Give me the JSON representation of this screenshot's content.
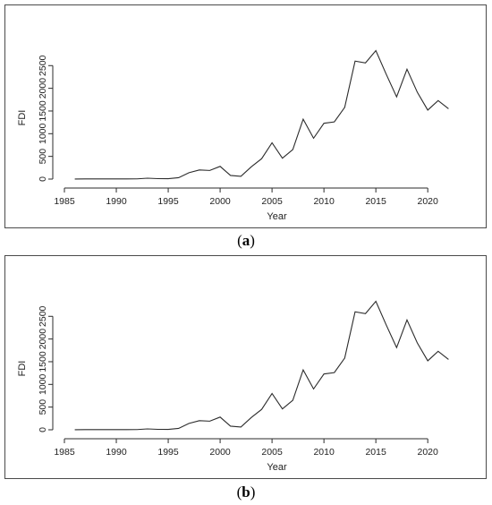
{
  "captions": [
    {
      "open": "(",
      "letter": "a",
      "close": ")"
    },
    {
      "open": "(",
      "letter": "b",
      "close": ")"
    }
  ],
  "chart_data": [
    {
      "type": "line",
      "xlabel": "Year",
      "ylabel": "FDI",
      "xlim": [
        1985,
        2023
      ],
      "ylim": [
        0,
        2900
      ],
      "x_ticks": [
        1985,
        1990,
        1995,
        2000,
        2005,
        2010,
        2015,
        2020
      ],
      "y_ticks": [
        0,
        500,
        1000,
        1500,
        2000,
        2500
      ],
      "color": "#2b2b2b",
      "series": [
        {
          "x": [
            1986,
            1987,
            1988,
            1989,
            1990,
            1991,
            1992,
            1993,
            1994,
            1995,
            1996,
            1997,
            1998,
            1999,
            2000,
            2001,
            2002,
            2003,
            2004,
            2005,
            2006,
            2007,
            2008,
            2009,
            2010,
            2011,
            2012,
            2013,
            2014,
            2015,
            2016,
            2017,
            2018,
            2019,
            2020,
            2021,
            2022
          ],
          "values": [
            2,
            3,
            3,
            3,
            4,
            4,
            5,
            20,
            10,
            8,
            30,
            140,
            200,
            190,
            280,
            80,
            60,
            270,
            450,
            800,
            460,
            650,
            1320,
            900,
            1230,
            1260,
            1580,
            2600,
            2560,
            2830,
            2310,
            1810,
            2420,
            1910,
            1520,
            1730,
            1550
          ]
        }
      ]
    },
    {
      "type": "line",
      "xlabel": "Year",
      "ylabel": "FDI",
      "xlim": [
        1985,
        2023
      ],
      "ylim": [
        0,
        2900
      ],
      "x_ticks": [
        1985,
        1990,
        1995,
        2000,
        2005,
        2010,
        2015,
        2020
      ],
      "y_ticks": [
        0,
        500,
        1000,
        1500,
        2000,
        2500
      ],
      "color": "#2b2b2b",
      "series": [
        {
          "x": [
            1986,
            1987,
            1988,
            1989,
            1990,
            1991,
            1992,
            1993,
            1994,
            1995,
            1996,
            1997,
            1998,
            1999,
            2000,
            2001,
            2002,
            2003,
            2004,
            2005,
            2006,
            2007,
            2008,
            2009,
            2010,
            2011,
            2012,
            2013,
            2014,
            2015,
            2016,
            2017,
            2018,
            2019,
            2020,
            2021,
            2022
          ],
          "values": [
            2,
            3,
            3,
            3,
            4,
            4,
            5,
            20,
            10,
            8,
            30,
            140,
            200,
            190,
            280,
            80,
            60,
            270,
            450,
            800,
            460,
            650,
            1320,
            900,
            1230,
            1260,
            1580,
            2600,
            2560,
            2830,
            2310,
            1810,
            2420,
            1910,
            1520,
            1730,
            1550
          ]
        }
      ]
    }
  ]
}
